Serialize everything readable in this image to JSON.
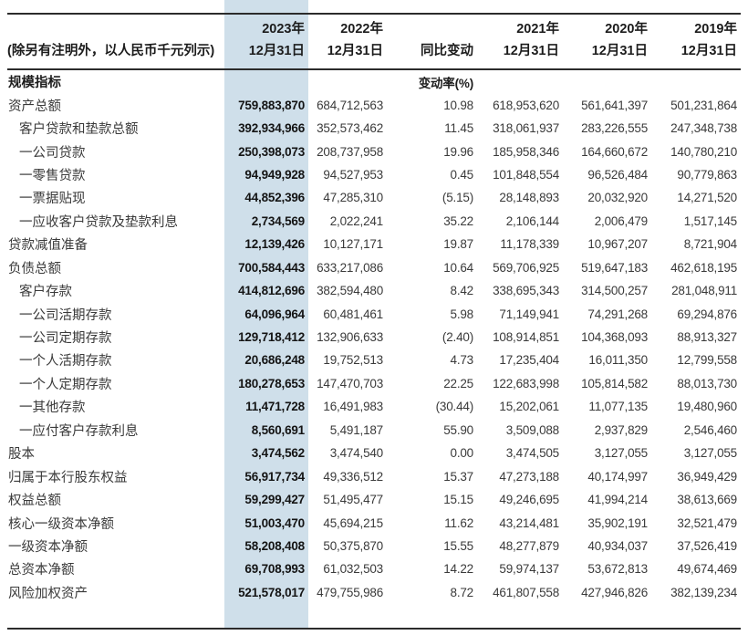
{
  "table": {
    "unit_note": "(除另有注明外，以人民币千元列示)",
    "section_label": "规模指标",
    "change_rate_label": "变动率(%)",
    "highlight_color": "#cfdfea",
    "columns": [
      {
        "id": "y2023",
        "line1": "2023年",
        "line2": "12月31日",
        "highlight": true
      },
      {
        "id": "y2022",
        "line1": "2022年",
        "line2": "12月31日",
        "highlight": false
      },
      {
        "id": "yoy",
        "line1": "",
        "line2": "同比变动",
        "highlight": false
      },
      {
        "id": "y2021",
        "line1": "2021年",
        "line2": "12月31日",
        "highlight": false
      },
      {
        "id": "y2020",
        "line1": "2020年",
        "line2": "12月31日",
        "highlight": false
      },
      {
        "id": "y2019",
        "line1": "2019年",
        "line2": "12月31日",
        "highlight": false
      }
    ],
    "rows": [
      {
        "label": "资产总额",
        "indent": 0,
        "values": [
          "759,883,870",
          "684,712,563",
          "10.98",
          "618,953,620",
          "561,641,397",
          "501,231,864"
        ]
      },
      {
        "label": "客户贷款和垫款总额",
        "indent": 1,
        "values": [
          "392,934,966",
          "352,573,462",
          "11.45",
          "318,061,937",
          "283,226,555",
          "247,348,738"
        ]
      },
      {
        "label": "一公司贷款",
        "indent": 1,
        "values": [
          "250,398,073",
          "208,737,958",
          "19.96",
          "185,958,346",
          "164,660,672",
          "140,780,210"
        ]
      },
      {
        "label": "一零售贷款",
        "indent": 1,
        "values": [
          "94,949,928",
          "94,527,953",
          "0.45",
          "101,848,554",
          "96,526,484",
          "90,779,863"
        ]
      },
      {
        "label": "一票据贴现",
        "indent": 1,
        "values": [
          "44,852,396",
          "47,285,310",
          "(5.15)",
          "28,148,893",
          "20,032,920",
          "14,271,520"
        ]
      },
      {
        "label": "一应收客户贷款及垫款利息",
        "indent": 1,
        "values": [
          "2,734,569",
          "2,022,241",
          "35.22",
          "2,106,144",
          "2,006,479",
          "1,517,145"
        ]
      },
      {
        "label": "贷款减值准备",
        "indent": 0,
        "values": [
          "12,139,426",
          "10,127,171",
          "19.87",
          "11,178,339",
          "10,967,207",
          "8,721,904"
        ]
      },
      {
        "label": "负债总额",
        "indent": 0,
        "values": [
          "700,584,443",
          "633,217,086",
          "10.64",
          "569,706,925",
          "519,647,183",
          "462,618,195"
        ]
      },
      {
        "label": "客户存款",
        "indent": 1,
        "values": [
          "414,812,696",
          "382,594,480",
          "8.42",
          "338,695,343",
          "314,500,257",
          "281,048,911"
        ]
      },
      {
        "label": "一公司活期存款",
        "indent": 1,
        "values": [
          "64,096,964",
          "60,481,461",
          "5.98",
          "71,149,941",
          "74,291,268",
          "69,294,876"
        ]
      },
      {
        "label": "一公司定期存款",
        "indent": 1,
        "values": [
          "129,718,412",
          "132,906,633",
          "(2.40)",
          "108,914,851",
          "104,368,093",
          "88,913,327"
        ]
      },
      {
        "label": "一个人活期存款",
        "indent": 1,
        "values": [
          "20,686,248",
          "19,752,513",
          "4.73",
          "17,235,404",
          "16,011,350",
          "12,799,558"
        ]
      },
      {
        "label": "一个人定期存款",
        "indent": 1,
        "values": [
          "180,278,653",
          "147,470,703",
          "22.25",
          "122,683,998",
          "105,814,582",
          "88,013,730"
        ]
      },
      {
        "label": "一其他存款",
        "indent": 1,
        "values": [
          "11,471,728",
          "16,491,983",
          "(30.44)",
          "15,202,061",
          "11,077,135",
          "19,480,960"
        ]
      },
      {
        "label": "一应付客户存款利息",
        "indent": 1,
        "values": [
          "8,560,691",
          "5,491,187",
          "55.90",
          "3,509,088",
          "2,937,829",
          "2,546,460"
        ]
      },
      {
        "label": "股本",
        "indent": 0,
        "values": [
          "3,474,562",
          "3,474,540",
          "0.00",
          "3,474,505",
          "3,127,055",
          "3,127,055"
        ]
      },
      {
        "label": "归属于本行股东权益",
        "indent": 0,
        "values": [
          "56,917,734",
          "49,336,512",
          "15.37",
          "47,273,188",
          "40,174,997",
          "36,949,429"
        ]
      },
      {
        "label": "权益总额",
        "indent": 0,
        "values": [
          "59,299,427",
          "51,495,477",
          "15.15",
          "49,246,695",
          "41,994,214",
          "38,613,669"
        ]
      },
      {
        "label": "核心一级资本净额",
        "indent": 0,
        "values": [
          "51,003,470",
          "45,694,215",
          "11.62",
          "43,214,481",
          "35,902,191",
          "32,521,479"
        ]
      },
      {
        "label": "一级资本净额",
        "indent": 0,
        "values": [
          "58,208,408",
          "50,375,870",
          "15.55",
          "48,277,879",
          "40,934,037",
          "37,526,419"
        ]
      },
      {
        "label": "总资本净额",
        "indent": 0,
        "values": [
          "69,708,993",
          "61,032,503",
          "14.22",
          "59,974,137",
          "53,672,813",
          "49,674,469"
        ]
      },
      {
        "label": "风险加权资产",
        "indent": 0,
        "values": [
          "521,578,017",
          "479,755,986",
          "8.72",
          "461,807,558",
          "427,946,826",
          "382,139,234"
        ]
      }
    ]
  }
}
